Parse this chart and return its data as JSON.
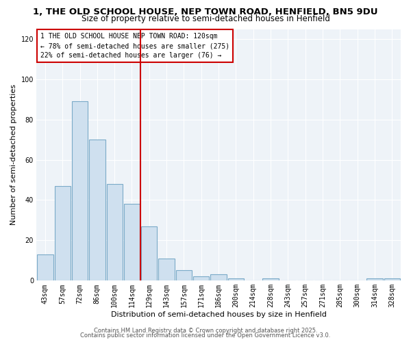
{
  "title1": "1, THE OLD SCHOOL HOUSE, NEP TOWN ROAD, HENFIELD, BN5 9DU",
  "title2": "Size of property relative to semi-detached houses in Henfield",
  "xlabel": "Distribution of semi-detached houses by size in Henfield",
  "ylabel": "Number of semi-detached properties",
  "bar_labels": [
    "43sqm",
    "57sqm",
    "72sqm",
    "86sqm",
    "100sqm",
    "114sqm",
    "129sqm",
    "143sqm",
    "157sqm",
    "171sqm",
    "186sqm",
    "200sqm",
    "214sqm",
    "228sqm",
    "243sqm",
    "257sqm",
    "271sqm",
    "285sqm",
    "300sqm",
    "314sqm",
    "328sqm"
  ],
  "bar_values": [
    13,
    47,
    89,
    70,
    48,
    38,
    27,
    11,
    5,
    2,
    3,
    1,
    0,
    1,
    0,
    0,
    0,
    0,
    0,
    1,
    1
  ],
  "bar_color": "#cfe0ef",
  "bar_edgecolor": "#7aaac8",
  "vline_color": "#cc0000",
  "annotation_title": "1 THE OLD SCHOOL HOUSE NEP TOWN ROAD: 120sqm",
  "annotation_line1": "← 78% of semi-detached houses are smaller (275)",
  "annotation_line2": "22% of semi-detached houses are larger (76) →",
  "annotation_box_facecolor": "#ffffff",
  "annotation_box_edgecolor": "#cc0000",
  "ylim": [
    0,
    125
  ],
  "yticks": [
    0,
    20,
    40,
    60,
    80,
    100,
    120
  ],
  "footer1": "Contains HM Land Registry data © Crown copyright and database right 2025.",
  "footer2": "Contains public sector information licensed under the Open Government Licence v3.0.",
  "bg_color": "#ffffff",
  "plot_bg_color": "#eef3f8",
  "grid_color": "#ffffff",
  "title1_fontsize": 9.5,
  "title2_fontsize": 8.5,
  "axis_label_fontsize": 8,
  "tick_fontsize": 7,
  "annotation_fontsize": 7,
  "footer_fontsize": 6
}
